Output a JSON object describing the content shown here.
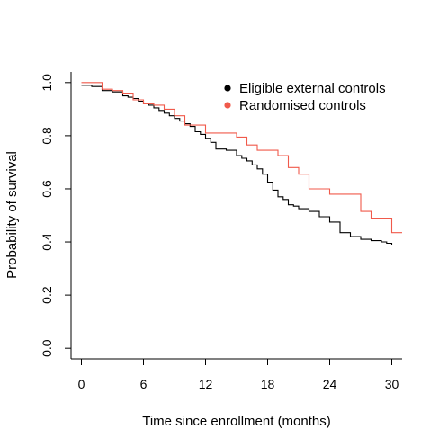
{
  "chart_data": {
    "type": "line",
    "subtype": "kaplan-meier-step",
    "title": "",
    "xlabel": "Time since enrollment (months)",
    "ylabel": "Probability of survival",
    "xlim": [
      -1,
      31
    ],
    "ylim": [
      -0.04,
      1.04
    ],
    "x_ticks": [
      0,
      6,
      12,
      18,
      24,
      30
    ],
    "y_ticks": [
      0.0,
      0.2,
      0.4,
      0.6,
      0.8,
      1.0
    ],
    "y_tick_labels": [
      "0.0",
      "0.2",
      "0.4",
      "0.6",
      "0.8",
      "1.0"
    ],
    "grid": false,
    "legend": "top-right",
    "series": [
      {
        "name": "Eligible external controls",
        "color": "#000000",
        "x": [
          0,
          1,
          2,
          3,
          4,
          4.5,
          5,
          5.5,
          6,
          6.5,
          7,
          7.5,
          8,
          8.5,
          9,
          9.5,
          10,
          10.5,
          11,
          11.5,
          12,
          12.5,
          13,
          14,
          15,
          15.5,
          16,
          16.5,
          17,
          17.5,
          18,
          18.5,
          19,
          19.5,
          20,
          20.5,
          21,
          22,
          23,
          24,
          25,
          26,
          27,
          28,
          29,
          29.5,
          30
        ],
        "y": [
          0.99,
          0.985,
          0.97,
          0.965,
          0.95,
          0.945,
          0.94,
          0.93,
          0.92,
          0.915,
          0.905,
          0.895,
          0.885,
          0.875,
          0.865,
          0.855,
          0.845,
          0.835,
          0.815,
          0.805,
          0.79,
          0.775,
          0.75,
          0.745,
          0.725,
          0.715,
          0.705,
          0.69,
          0.675,
          0.655,
          0.625,
          0.595,
          0.57,
          0.56,
          0.54,
          0.535,
          0.525,
          0.515,
          0.495,
          0.475,
          0.435,
          0.42,
          0.41,
          0.405,
          0.4,
          0.395,
          0.39
        ]
      },
      {
        "name": "Randomised controls",
        "color": "#f05a4b",
        "x": [
          0,
          2,
          3,
          4,
          5,
          6,
          7,
          8,
          9,
          10,
          11,
          12,
          15,
          16,
          17,
          19,
          20,
          21,
          22,
          24,
          27,
          28,
          30,
          31
        ],
        "y": [
          1.0,
          0.975,
          0.97,
          0.96,
          0.935,
          0.92,
          0.915,
          0.9,
          0.875,
          0.84,
          0.84,
          0.81,
          0.795,
          0.765,
          0.745,
          0.725,
          0.68,
          0.655,
          0.6,
          0.58,
          0.515,
          0.49,
          0.435,
          0.435
        ]
      }
    ]
  }
}
